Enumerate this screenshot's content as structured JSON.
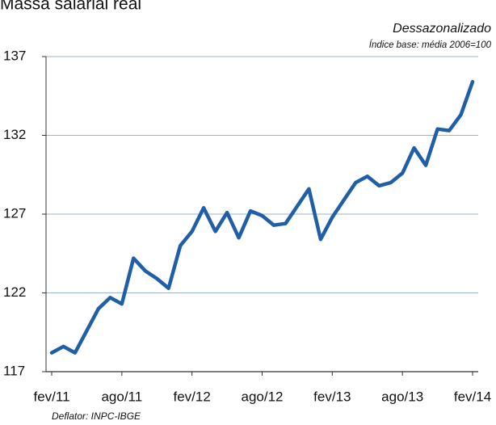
{
  "chart_data": {
    "type": "line",
    "title": "Massa salarial real",
    "subtitle": "Dessazonalizado",
    "axis_note": "Índice base: média 2006=100",
    "footnote": "Deflator: INPC-IBGE",
    "categories": [
      "fev/11",
      null,
      null,
      null,
      null,
      null,
      "ago/11",
      null,
      null,
      null,
      null,
      null,
      "fev/12",
      null,
      null,
      null,
      null,
      null,
      "ago/12",
      null,
      null,
      null,
      null,
      null,
      "fev/13",
      null,
      null,
      null,
      null,
      null,
      "ago/13",
      null,
      null,
      null,
      null,
      null,
      "fev/14"
    ],
    "series": [
      {
        "name": "Massa salarial real",
        "color": "#1f5fa8",
        "values": [
          118.2,
          118.6,
          118.2,
          119.6,
          121.0,
          121.7,
          121.3,
          124.2,
          123.4,
          122.9,
          122.3,
          125.0,
          125.9,
          127.4,
          125.9,
          127.1,
          125.5,
          127.2,
          126.9,
          126.3,
          126.4,
          127.5,
          128.6,
          125.4,
          126.8,
          127.9,
          129.0,
          129.4,
          128.8,
          129.0,
          129.6,
          131.2,
          130.1,
          132.4,
          132.3,
          133.3,
          135.4
        ]
      }
    ],
    "ylim": [
      117,
      137
    ],
    "yticks": [
      117,
      122,
      127,
      132,
      137
    ],
    "grid": true
  }
}
